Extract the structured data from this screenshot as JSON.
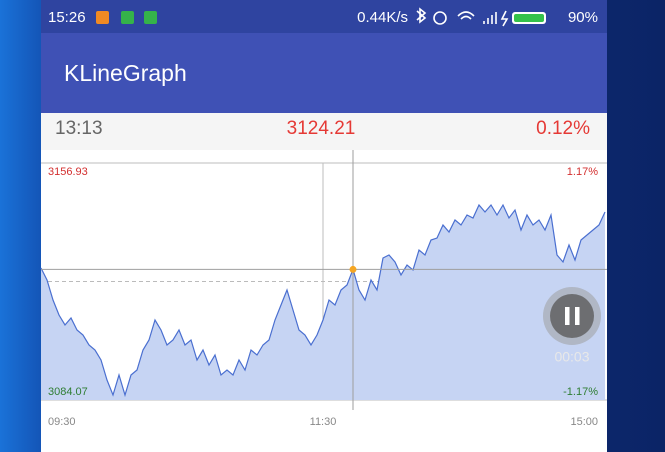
{
  "status_bar": {
    "time": "15:26",
    "speed": "0.44K/s",
    "battery": "90%"
  },
  "app_bar": {
    "title": "KLineGraph"
  },
  "info": {
    "time": "13:13",
    "price": "3124.21",
    "change": "0.12%"
  },
  "chart_data": {
    "type": "line",
    "color": "#4a6fd0",
    "values": [
      3124.65,
      3120.96,
      3114.81,
      3110.2,
      3107.13,
      3109.28,
      3105.59,
      3104.05,
      3100.98,
      3099.44,
      3096.37,
      3090.22,
      3085.61,
      3091.76,
      3085.61,
      3091.76,
      3093.29,
      3099.44,
      3102.52,
      3108.66,
      3105.59,
      3100.98,
      3102.52,
      3105.59,
      3100.98,
      3102.52,
      3096.37,
      3099.44,
      3094.83,
      3097.9,
      3091.76,
      3093.29,
      3091.76,
      3096.37,
      3093.29,
      3099.44,
      3097.9,
      3100.98,
      3102.52,
      3108.66,
      3113.28,
      3117.89,
      3111.74,
      3105.59,
      3104.05,
      3100.98,
      3104.05,
      3108.66,
      3114.81,
      3113.28,
      3117.89,
      3119.42,
      3124.21,
      3117.89,
      3114.81,
      3120.96,
      3117.89,
      3127.73,
      3128.65,
      3126.5,
      3122.5,
      3125.57,
      3124.04,
      3130.18,
      3128.65,
      3133.26,
      3133.87,
      3137.87,
      3135.72,
      3139.41,
      3137.87,
      3140.94,
      3140.02,
      3144.02,
      3141.87,
      3144.02,
      3140.94,
      3144.02,
      3140.02,
      3142.48,
      3136.33,
      3140.94,
      3137.87,
      3139.41,
      3136.33,
      3140.94,
      3128.65,
      3126.5,
      3131.72,
      3127.11,
      3133.26,
      3134.8,
      3136.33,
      3137.87,
      3141.87
    ],
    "ylim": [
      3084.07,
      3156.93
    ],
    "yticks": [
      3084.07,
      3156.93
    ],
    "y2lim": [
      -1.17,
      1.17
    ],
    "y2ticks": [
      {
        "value": -1.17,
        "label": "-1.17%"
      },
      {
        "value": 1.17,
        "label": "1.17%"
      }
    ],
    "xlabels": [
      "09:30",
      "11:30",
      "15:00"
    ]
  },
  "timer": "00:03"
}
